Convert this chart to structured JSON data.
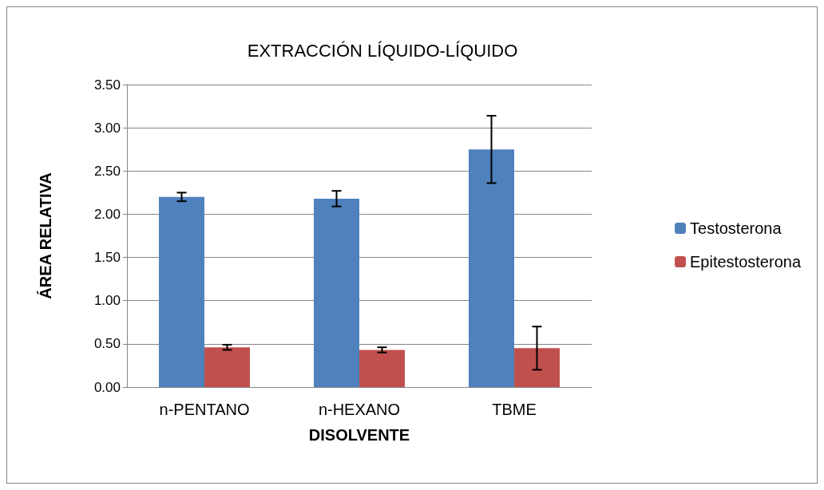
{
  "chart_data": {
    "type": "bar",
    "title": "EXTRACCIÓN LÍQUIDO-LÍQUIDO",
    "xlabel": "DISOLVENTE",
    "ylabel": "ÁREA RELATIVA",
    "categories": [
      "n-PENTANO",
      "n-HEXANO",
      "TBME"
    ],
    "series": [
      {
        "name": "Testosterona",
        "color": "#4f81bd",
        "values": [
          2.2,
          2.18,
          2.75
        ],
        "errors": [
          0.05,
          0.09,
          0.39
        ]
      },
      {
        "name": "Epitestosterona",
        "color": "#c0504d",
        "values": [
          0.46,
          0.43,
          0.45
        ],
        "errors": [
          0.03,
          0.03,
          0.25
        ]
      }
    ],
    "ylim": [
      0,
      3.5
    ],
    "yticks": [
      {
        "value": 0,
        "label": "0.00"
      },
      {
        "value": 0.5,
        "label": "0.50"
      },
      {
        "value": 1,
        "label": "1.00"
      },
      {
        "value": 1.5,
        "label": "1.50"
      },
      {
        "value": 2,
        "label": "2.00"
      },
      {
        "value": 2.5,
        "label": "2.50"
      },
      {
        "value": 3,
        "label": "3.00"
      },
      {
        "value": 3.5,
        "label": "3.50"
      }
    ],
    "grid": "y",
    "legend": "right"
  }
}
